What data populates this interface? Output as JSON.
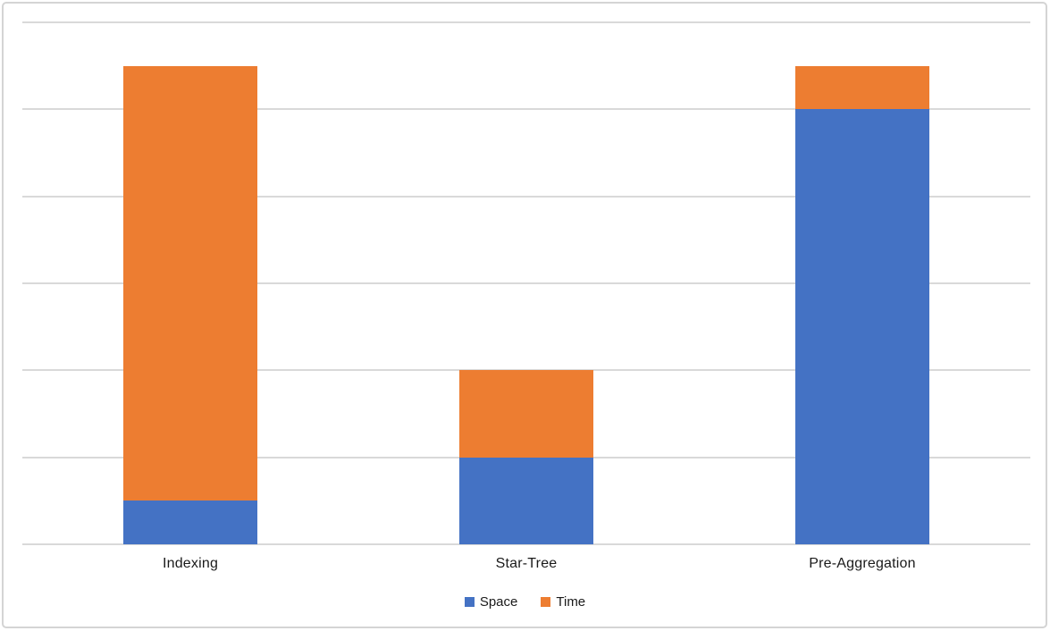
{
  "chart_data": {
    "type": "bar",
    "stacked": true,
    "title": "",
    "xlabel": "",
    "ylabel": "",
    "categories": [
      "Indexing",
      "Star-Tree",
      "Pre-Aggregation"
    ],
    "series": [
      {
        "name": "Space",
        "color": "#4472C4",
        "values": [
          0.5,
          1,
          5
        ]
      },
      {
        "name": "Time",
        "color": "#ED7D31",
        "values": [
          5,
          1,
          0.5
        ]
      }
    ],
    "ylim": [
      0,
      6
    ],
    "gridline_step": 1,
    "grid": true,
    "y_tick_labels_visible": false,
    "legend_position": "bottom"
  },
  "legend": {
    "items": [
      {
        "label": "Space",
        "color": "#4472C4"
      },
      {
        "label": "Time",
        "color": "#ED7D31"
      }
    ]
  },
  "colors": {
    "background": "#FFFFFF",
    "gridline": "#D9D9D9",
    "axis_line": "#D9D9D9",
    "frame_border": "#D4D4D4",
    "text": "#1A1A1A"
  }
}
